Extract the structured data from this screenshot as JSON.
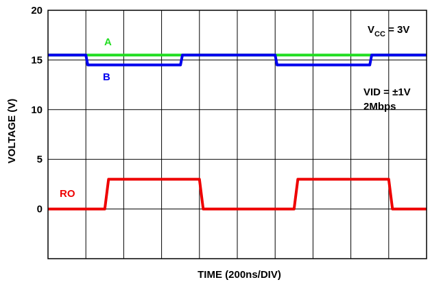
{
  "chart_data": {
    "type": "line",
    "title": "",
    "xlabel": "TIME (200ns/DIV)",
    "ylabel": "VOLTAGE (V)",
    "ylim": [
      -5,
      20
    ],
    "xlim": [
      0,
      2000
    ],
    "y_ticks": [
      "20",
      "15",
      "10",
      "5",
      "0"
    ],
    "y_tick_values": [
      20,
      15,
      10,
      5,
      0
    ],
    "grid": true,
    "annotations": {
      "vcc_main": "V",
      "vcc_sub": "CC",
      "vcc_rest": " = 3V",
      "vid": "VID = ±1V",
      "rate": "2Mbps"
    },
    "series": [
      {
        "name": "A",
        "color": "#22dd22",
        "x": [
          0,
          200,
          200,
          700,
          700,
          1200,
          1200,
          1700,
          1700,
          2000
        ],
        "y": [
          15.5,
          15.5,
          15.5,
          15.5,
          15.5,
          15.5,
          15.5,
          15.5,
          15.5,
          15.5
        ]
      },
      {
        "name": "B",
        "color": "#0000ee",
        "x": [
          0,
          200,
          210,
          700,
          710,
          1200,
          1210,
          1700,
          1710,
          2000
        ],
        "y": [
          15.5,
          15.5,
          14.5,
          14.5,
          15.5,
          15.5,
          14.5,
          14.5,
          15.5,
          15.5
        ]
      },
      {
        "name": "RO",
        "color": "#ee0000",
        "x": [
          0,
          300,
          320,
          800,
          820,
          1300,
          1320,
          1800,
          1820,
          2000
        ],
        "y": [
          0,
          0,
          3,
          3,
          0,
          0,
          3,
          3,
          0,
          0
        ]
      }
    ]
  }
}
